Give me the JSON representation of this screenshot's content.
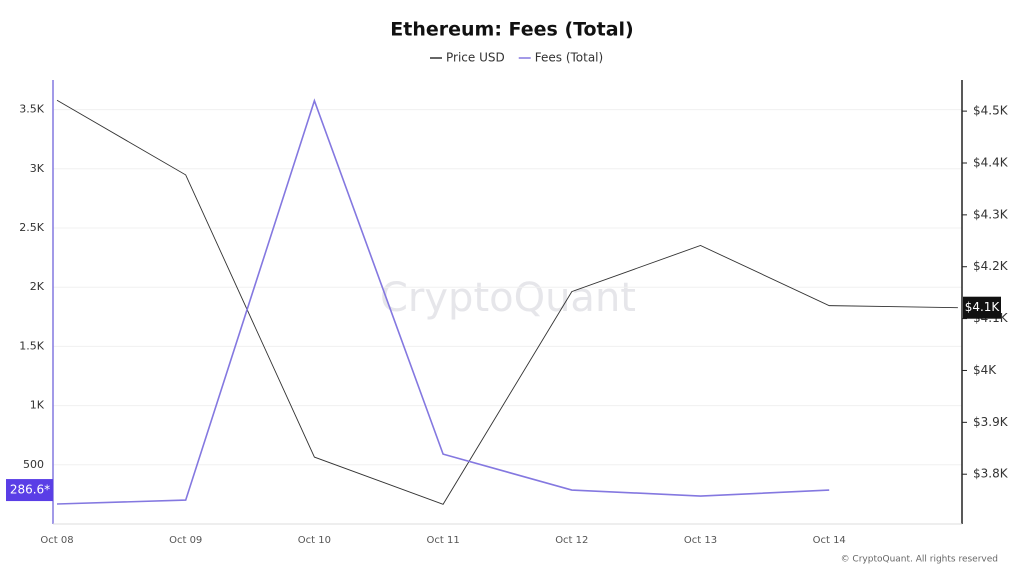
{
  "chart_data": {
    "type": "line",
    "title": "Ethereum: Fees (Total)",
    "categories": [
      "Oct 08",
      "Oct 09",
      "Oct 10",
      "Oct 11",
      "Oct 12",
      "Oct 13",
      "Oct 14",
      null
    ],
    "series": [
      {
        "name": "Price USD",
        "color": "#333333",
        "axis": "y2",
        "values": [
          4521,
          4377,
          3833,
          3742,
          4152,
          4241,
          4125,
          4121
        ]
      },
      {
        "name": "Fees (Total)",
        "color": "#8478e0",
        "axis": "y",
        "values": [
          169,
          202,
          3575,
          590,
          287,
          236,
          286.6,
          null
        ]
      }
    ],
    "ylim": [
      0,
      3750
    ],
    "yticks": [
      500,
      {
        "value": 1000,
        "label": "1K"
      },
      {
        "value": 1500,
        "label": "1.5K"
      },
      {
        "value": 2000,
        "label": "2K"
      },
      {
        "value": 2500,
        "label": "2.5K"
      },
      {
        "value": 3000,
        "label": "3K"
      },
      {
        "value": 3500,
        "label": "3.5K"
      }
    ],
    "y2lim": [
      3704,
      4560
    ],
    "y2ticks": [
      {
        "value": 3800,
        "label": "$3.8K"
      },
      {
        "value": 3900,
        "label": "$3.9K"
      },
      {
        "value": 4000,
        "label": "$4K"
      },
      {
        "value": 4100,
        "label": "$4.1K"
      },
      {
        "value": 4200,
        "label": "$4.2K"
      },
      {
        "value": 4300,
        "label": "$4.3K"
      },
      {
        "value": 4400,
        "label": "$4.4K"
      },
      {
        "value": 4500,
        "label": "$4.5K"
      }
    ],
    "grid": true,
    "fees_badge": {
      "value": 286.6,
      "label": "286.6*",
      "color": "#5a3ee6"
    },
    "price_badge": {
      "value": 4121,
      "label": "$4.1K",
      "color": "#111111"
    },
    "watermark": "CryptoQuant",
    "copyright": "© CryptoQuant. All rights reserved"
  }
}
